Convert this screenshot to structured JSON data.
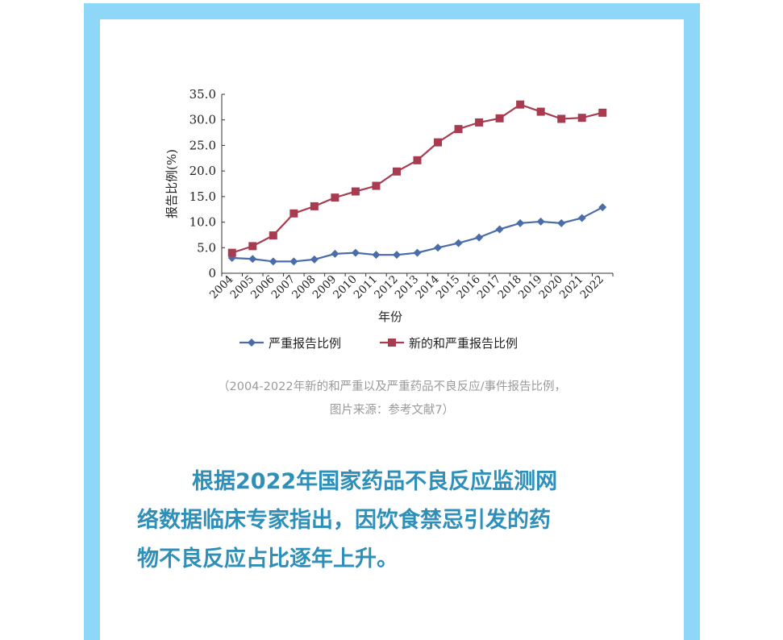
{
  "chart_data": {
    "type": "line",
    "title": "",
    "xlabel": "年份",
    "ylabel": "报告比例(%)",
    "ylim": [
      0,
      35
    ],
    "yticks": [
      "0",
      "5.0",
      "10.0",
      "15.0",
      "20.0",
      "25.0",
      "30.0",
      "35.0"
    ],
    "categories": [
      "2004",
      "2005",
      "2006",
      "2007",
      "2008",
      "2009",
      "2010",
      "2011",
      "2012",
      "2013",
      "2014",
      "2015",
      "2016",
      "2017",
      "2018",
      "2019",
      "2020",
      "2021",
      "2022"
    ],
    "legend_position": "bottom",
    "grid": false,
    "series": [
      {
        "name": "严重报告比例",
        "color": "#4a6ca8",
        "marker": "diamond",
        "values": [
          3.0,
          2.8,
          2.3,
          2.3,
          2.7,
          3.8,
          4.0,
          3.6,
          3.6,
          4.0,
          5.0,
          5.9,
          7.0,
          8.6,
          9.8,
          10.1,
          9.8,
          10.8,
          12.9
        ]
      },
      {
        "name": "新的和严重报告比例",
        "color": "#a83b50",
        "marker": "square",
        "values": [
          4.0,
          5.3,
          7.4,
          11.7,
          13.1,
          14.8,
          16.0,
          17.1,
          19.9,
          22.1,
          25.6,
          28.2,
          29.5,
          30.3,
          33.0,
          31.6,
          30.2,
          30.4,
          31.4
        ]
      }
    ]
  },
  "caption": {
    "line1": "（2004-2022年新的和严重以及严重药品不良反应/事件报告比例，",
    "line2": "图片来源：参考文献7）"
  },
  "body": {
    "line1": "根据2022年国家药品不良反应监测网",
    "line2": "络数据临床专家指出，因饮食禁忌引发的药",
    "line3": "物不良反应占比逐年上升。"
  }
}
